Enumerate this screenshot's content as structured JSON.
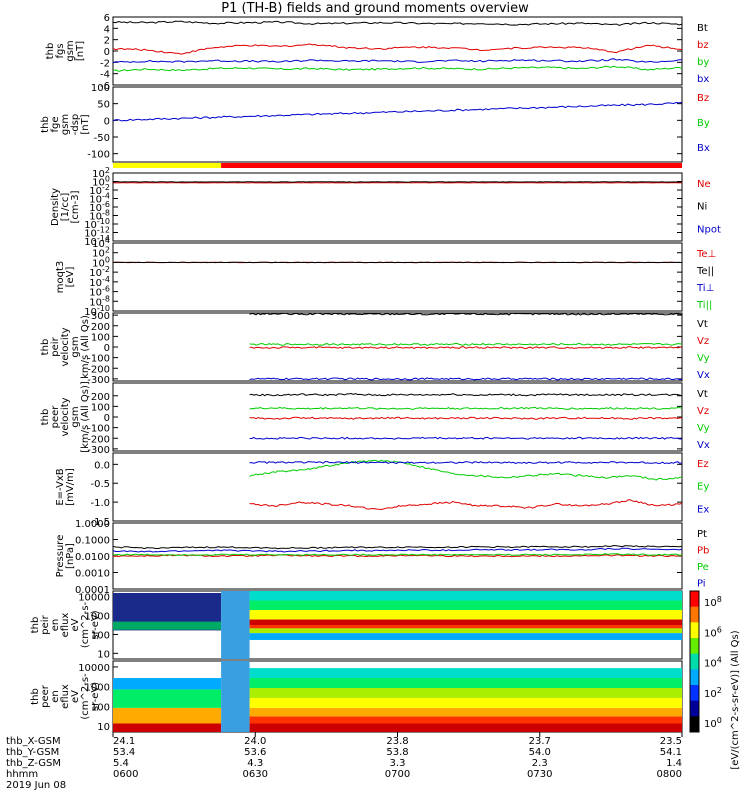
{
  "title": "P1 (TH-B) fields and ground moments overview",
  "colors": {
    "black": "#000000",
    "red": "#e00000",
    "green": "#00cc00",
    "blue": "#0000cc",
    "yellow": "#ffff00",
    "bar_red": "#ff0000"
  },
  "chart_data": [
    {
      "type": "line",
      "ylabel": [
        "thb",
        "fgs",
        "gsm",
        "[nT]"
      ],
      "ylim": [
        -6,
        6
      ],
      "yticks": [
        "6",
        "4",
        "2",
        "0",
        "-2",
        "-4",
        "-6"
      ],
      "ytick_values": [
        6,
        4,
        2,
        0,
        -2,
        -4,
        -6
      ],
      "series": [
        {
          "name": "Bt",
          "color": "black",
          "values": [
            5.1,
            5.0,
            5.2,
            4.9,
            5.0,
            5.1,
            4.8,
            4.9,
            5.0,
            4.9,
            4.8,
            4.9,
            4.7,
            4.8,
            4.9,
            4.6,
            5.0,
            4.7
          ]
        },
        {
          "name": "bz",
          "color": "red",
          "values": [
            0.4,
            0.2,
            -0.5,
            0.6,
            1.0,
            0.8,
            1.2,
            0.6,
            0.4,
            0.7,
            0.6,
            0.2,
            0.5,
            0.7,
            0.6,
            -0.2,
            1.0,
            0.3
          ]
        },
        {
          "name": "by",
          "color": "green",
          "values": [
            -3.5,
            -3.2,
            -3.4,
            -3.1,
            -3.0,
            -3.2,
            -3.1,
            -3.3,
            -3.2,
            -3.0,
            -3.1,
            -3.2,
            -3.0,
            -2.9,
            -3.1,
            -2.7,
            -3.3,
            -2.9
          ]
        },
        {
          "name": "bx",
          "color": "blue",
          "values": [
            -2.0,
            -1.8,
            -1.9,
            -1.7,
            -1.8,
            -1.9,
            -1.6,
            -1.8,
            -1.7,
            -1.9,
            -1.7,
            -1.8,
            -1.6,
            -1.7,
            -1.8,
            -1.5,
            -2.0,
            -1.6
          ]
        }
      ]
    },
    {
      "type": "line",
      "ylabel": [
        "thb",
        "fge",
        "gsm",
        "-dsp",
        "[nT]"
      ],
      "ylim": [
        -125,
        100
      ],
      "yticks": [
        "100",
        "50",
        "0",
        "-50",
        "-100"
      ],
      "ytick_values": [
        100,
        50,
        0,
        -50,
        -100
      ],
      "series": [
        {
          "name": "Bz",
          "color": "red",
          "values": []
        },
        {
          "name": "By",
          "color": "green",
          "values": []
        },
        {
          "name": "Bx",
          "color": "blue",
          "values": [
            0,
            3,
            6,
            9,
            12,
            15,
            18,
            21,
            24,
            27,
            30,
            33,
            36,
            39,
            42,
            45,
            48,
            52
          ]
        }
      ]
    },
    {
      "type": "line",
      "ylabel": [
        "Density",
        "[1/cc]",
        "[cm-3]"
      ],
      "log": true,
      "ylim": [
        1e-14,
        100
      ],
      "yticks": [
        "10^2",
        "10^0",
        "10^-2",
        "10^-4",
        "10^-6",
        "10^-8",
        "10^-10",
        "10^-12",
        "10^-14"
      ],
      "ytick_values": [
        2,
        0,
        -2,
        -4,
        -6,
        -8,
        -10,
        -12,
        -14
      ],
      "series": [
        {
          "name": "Ne",
          "color": "red",
          "values": [
            0.5,
            0.5,
            0.5,
            0.5,
            0.5,
            0.5,
            0.5,
            0.5,
            0.5,
            0.5,
            0.5,
            0.5,
            0.5,
            0.5,
            0.5,
            0.5,
            0.5,
            0.5
          ]
        },
        {
          "name": "Ni",
          "color": "black",
          "values": [
            0.8,
            0.8,
            0.8,
            0.8,
            0.8,
            0.8,
            0.8,
            0.8,
            0.8,
            0.8,
            0.8,
            0.8,
            0.8,
            0.8,
            0.8,
            0.8,
            0.8,
            0.8
          ]
        },
        {
          "name": "Npot",
          "color": "blue",
          "values": []
        }
      ]
    },
    {
      "type": "line",
      "ylabel": [
        "moqt3",
        "[eV]"
      ],
      "log": true,
      "ylim": [
        1e-10,
        10000.0
      ],
      "yticks": [
        "10^4",
        "10^2",
        "10^0",
        "10^-2",
        "10^-4",
        "10^-6",
        "10^-8",
        "10^-10"
      ],
      "ytick_values": [
        4,
        2,
        0,
        -2,
        -4,
        -6,
        -8,
        -10
      ],
      "series": [
        {
          "name": "Te⊥",
          "color": "red",
          "values": [
            1,
            1,
            1,
            1,
            1,
            1,
            1,
            1,
            1,
            1,
            1,
            1,
            1,
            1,
            1,
            1,
            1,
            1
          ]
        },
        {
          "name": "Te||",
          "color": "black",
          "values": [
            1,
            1,
            1,
            1,
            1,
            1,
            1,
            1,
            1,
            1,
            1,
            1,
            1,
            1,
            1,
            1,
            1,
            1
          ]
        },
        {
          "name": "Ti⊥",
          "color": "blue",
          "values": []
        },
        {
          "name": "Ti||",
          "color": "green",
          "values": []
        }
      ]
    },
    {
      "type": "line",
      "ylabel": [
        "thb",
        "peir",
        "velocity",
        "gsm",
        "km/s (All Qs)"
      ],
      "ylim": [
        -320,
        320
      ],
      "yticks": [
        "300",
        "200",
        "100",
        "0",
        "-100",
        "-200",
        "-300"
      ],
      "ytick_values": [
        300,
        200,
        100,
        0,
        -100,
        -200,
        -300
      ],
      "series": [
        {
          "name": "Vt",
          "color": "black",
          "values": [
            310,
            312,
            308,
            311,
            309,
            310,
            312,
            308,
            310,
            311,
            309,
            310,
            312,
            308,
            310,
            311,
            309,
            310
          ]
        },
        {
          "name": "Vz",
          "color": "red",
          "values": [
            -5,
            -8,
            -4,
            -6,
            -7,
            -5,
            -6,
            -8,
            -5,
            -4,
            -6,
            -7,
            -5,
            -6,
            -5,
            -4,
            -6,
            -5
          ]
        },
        {
          "name": "Vy",
          "color": "green",
          "values": [
            25,
            24,
            26,
            25,
            24,
            25,
            26,
            24,
            25,
            26,
            25,
            24,
            25,
            26,
            24,
            25,
            26,
            25
          ]
        },
        {
          "name": "Vx",
          "color": "blue",
          "values": [
            -300,
            -301,
            -300,
            -299,
            -300,
            -301,
            -300,
            -299,
            -300,
            -301,
            -300,
            -299,
            -300,
            -301,
            -300,
            -298,
            -300,
            -301
          ]
        }
      ]
    },
    {
      "type": "line",
      "ylabel": [
        "thb",
        "peer",
        "velocity",
        "gsm",
        "[km/s (All Qs)]"
      ],
      "ylim": [
        -320,
        320
      ],
      "yticks": [
        "200",
        "100",
        "0",
        "-100",
        "-200",
        "-300"
      ],
      "ytick_values": [
        200,
        100,
        0,
        -100,
        -200,
        -300
      ],
      "series": [
        {
          "name": "Vt",
          "color": "black",
          "values": [
            210,
            205,
            212,
            208,
            215,
            206,
            210,
            209,
            213,
            207,
            211,
            206,
            212,
            208,
            210,
            209,
            211,
            207
          ]
        },
        {
          "name": "Vz",
          "color": "red",
          "values": [
            -10,
            -15,
            -8,
            -12,
            -14,
            -10,
            -9,
            -13,
            -11,
            -10,
            -12,
            -14,
            -10,
            -9,
            -11,
            -13,
            -10,
            -12
          ]
        },
        {
          "name": "Vy",
          "color": "green",
          "values": [
            80,
            85,
            78,
            82,
            84,
            80,
            79,
            83,
            81,
            80,
            82,
            84,
            80,
            79,
            81,
            83,
            80,
            82
          ]
        },
        {
          "name": "Vx",
          "color": "blue",
          "values": [
            -200,
            -202,
            -198,
            -201,
            -199,
            -200,
            -203,
            -198,
            -201,
            -200,
            -199,
            -202,
            -200,
            -198,
            -201,
            -200,
            -199,
            -202
          ]
        }
      ]
    },
    {
      "type": "line",
      "ylabel": [
        "E=-VxB",
        "[mV/m]"
      ],
      "ylim": [
        -1.5,
        0.3
      ],
      "yticks": [
        "0.0",
        "-0.5",
        "-1.0",
        "-1.5"
      ],
      "ytick_values": [
        0.0,
        -0.5,
        -1.0,
        -1.5
      ],
      "series": [
        {
          "name": "Ez",
          "color": "red",
          "values": [
            -1.05,
            -1.1,
            -1.0,
            -1.05,
            -1.1,
            -1.2,
            -1.1,
            -1.05,
            -1.0,
            -1.1,
            -1.1,
            -1.15,
            -1.05,
            -1.1,
            -1.05,
            -0.95,
            -1.1,
            -1.05
          ]
        },
        {
          "name": "Ey",
          "color": "green",
          "values": [
            -0.3,
            -0.2,
            -0.15,
            -0.05,
            0.05,
            0.1,
            0.05,
            -0.1,
            -0.25,
            -0.3,
            -0.35,
            -0.3,
            -0.25,
            -0.3,
            -0.35,
            -0.3,
            -0.4,
            -0.35
          ]
        },
        {
          "name": "Ex",
          "color": "blue",
          "values": [
            0.05,
            0.05,
            0.05,
            0.05,
            0.05,
            0.05,
            0.04,
            0.05,
            0.05,
            0.05,
            0.05,
            0.04,
            0.05,
            0.05,
            0.05,
            0.05,
            0.04,
            0.05
          ]
        }
      ]
    },
    {
      "type": "line",
      "ylabel": [
        "Pressure",
        "[nPa]"
      ],
      "log": true,
      "ylim": [
        0.0001,
        1.0
      ],
      "yticks": [
        "1.0000",
        "0.1000",
        "0.0100",
        "0.0010",
        "0.0001"
      ],
      "ytick_values": [
        0,
        -1,
        -2,
        -3,
        -4
      ],
      "series": [
        {
          "name": "Pt",
          "color": "black",
          "values": [
            0.035,
            0.03,
            0.032,
            0.034,
            0.033,
            0.03,
            0.031,
            0.034,
            0.033,
            0.035,
            0.034,
            0.036,
            0.035,
            0.037,
            0.036,
            0.04,
            0.038,
            0.035
          ]
        },
        {
          "name": "Pb",
          "color": "red",
          "values": [
            0.01,
            0.01,
            0.011,
            0.01,
            0.01,
            0.011,
            0.01,
            0.01,
            0.01,
            0.011,
            0.01,
            0.01,
            0.01,
            0.01,
            0.01,
            0.011,
            0.01,
            0.01
          ]
        },
        {
          "name": "Pe",
          "color": "green",
          "values": [
            0.012,
            0.012,
            0.012,
            0.012,
            0.012,
            0.012,
            0.012,
            0.012,
            0.012,
            0.012,
            0.012,
            0.012,
            0.012,
            0.012,
            0.012,
            0.013,
            0.012,
            0.012
          ]
        },
        {
          "name": "Pi",
          "color": "blue",
          "values": [
            0.02,
            0.018,
            0.02,
            0.022,
            0.021,
            0.019,
            0.02,
            0.022,
            0.021,
            0.023,
            0.022,
            0.024,
            0.023,
            0.025,
            0.024,
            0.028,
            0.026,
            0.024
          ]
        }
      ]
    },
    {
      "type": "heatmap",
      "ylabel": [
        "thb",
        "peir",
        "en",
        "eflux",
        "eV",
        "(cm^2-s-",
        "sr-eV)"
      ],
      "yticks": [
        "10000",
        "1000",
        "100",
        "10"
      ],
      "ytick_values": [
        4,
        3,
        2,
        1
      ]
    },
    {
      "type": "heatmap",
      "ylabel": [
        "thb",
        "peer",
        "en",
        "eflux",
        "eV",
        "(cm^2-s-",
        "sr-eV)"
      ],
      "yticks": [
        "10000",
        "1000",
        "100",
        "10"
      ],
      "ytick_values": [
        4,
        3,
        2,
        1
      ]
    }
  ],
  "colorbar": {
    "title": "[eV/(cm^2-s-sr-eV)] (All Qs)",
    "labels": [
      "10^8",
      "10^6",
      "10^4",
      "10^2",
      "10^0"
    ]
  },
  "xaxis": {
    "rows": [
      {
        "label": "thb_X-GSM",
        "values": [
          "24.1",
          "24.0",
          "23.8",
          "23.7",
          "23.5"
        ]
      },
      {
        "label": "thb_Y-GSM",
        "values": [
          "53.4",
          "53.6",
          "53.8",
          "54.0",
          "54.1"
        ]
      },
      {
        "label": "thb_Z-GSM",
        "values": [
          "5.4",
          "4.3",
          "3.3",
          "2.3",
          "1.4"
        ]
      },
      {
        "label": "hhmm",
        "values": [
          "0600",
          "0630",
          "0700",
          "0730",
          "0800"
        ]
      }
    ],
    "date": "2019 Jun 08"
  }
}
